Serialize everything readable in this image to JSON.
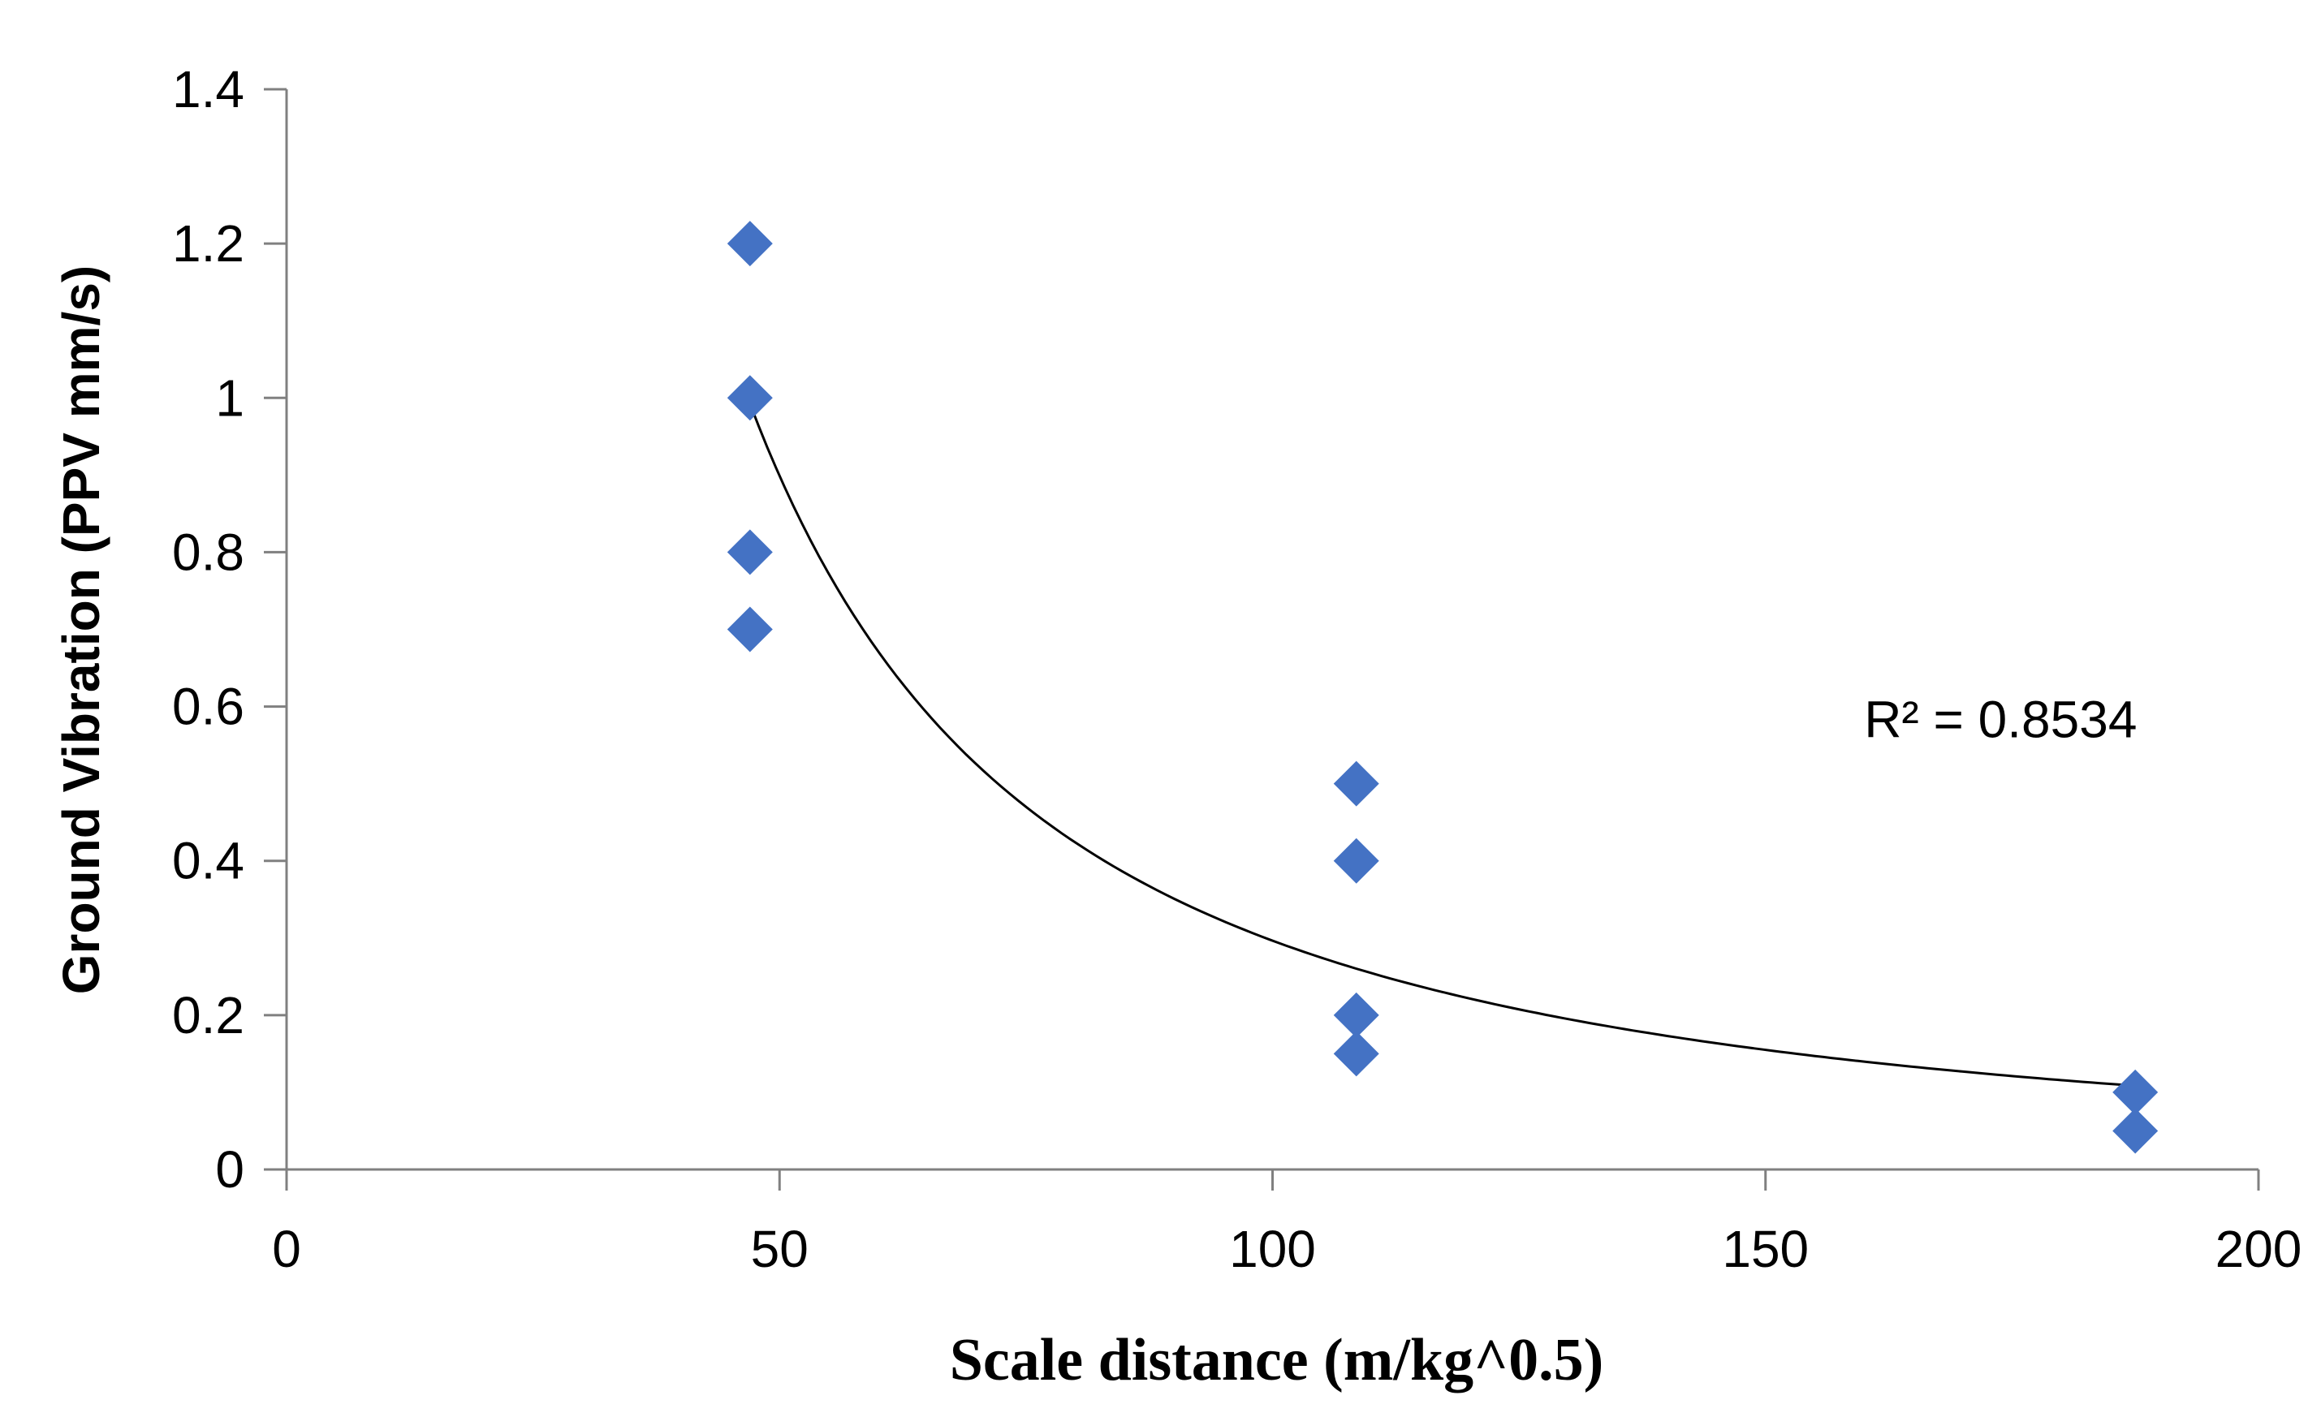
{
  "chart_data": {
    "type": "scatter",
    "title": "",
    "xlabel": "Scale distance (m/kg^0.5)",
    "ylabel": "Ground Vibration (PPV mm/s)",
    "xlim": [
      0,
      200
    ],
    "ylim": [
      0,
      1.4
    ],
    "xticks": [
      0,
      50,
      100,
      150,
      200
    ],
    "yticks": [
      0,
      0.2,
      0.4,
      0.6,
      0.8,
      1,
      1.2,
      1.4
    ],
    "xtick_labels": [
      "0",
      "50",
      "100",
      "150",
      "200"
    ],
    "ytick_labels": [
      "0",
      "0.2",
      "0.4",
      "0.6",
      "0.8",
      "1",
      "1.2",
      "1.4"
    ],
    "grid": false,
    "marker": "diamond",
    "series": [
      {
        "name": "PPV",
        "color": "#4472C4",
        "points": [
          {
            "x": 47,
            "y": 1.2
          },
          {
            "x": 47,
            "y": 1.0
          },
          {
            "x": 47,
            "y": 0.8
          },
          {
            "x": 47,
            "y": 0.7
          },
          {
            "x": 108.5,
            "y": 0.5
          },
          {
            "x": 108.5,
            "y": 0.4
          },
          {
            "x": 108.5,
            "y": 0.2
          },
          {
            "x": 108.5,
            "y": 0.15
          },
          {
            "x": 187.5,
            "y": 0.1
          },
          {
            "x": 187.5,
            "y": 0.05
          }
        ]
      }
    ],
    "trendline": {
      "type": "power",
      "coef": 470,
      "exponent": -1.6,
      "x_range": [
        47,
        187.5
      ],
      "color": "#000000"
    },
    "annotations": [
      {
        "text": "R² = 0.8534",
        "x": 160,
        "y": 0.56
      }
    ]
  }
}
